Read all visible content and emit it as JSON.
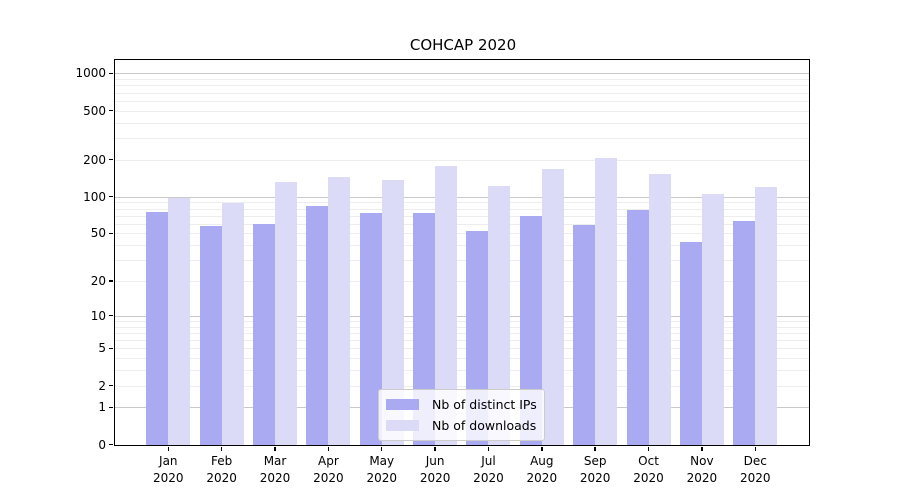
{
  "title": "COHCAP 2020",
  "colors": {
    "ips_bar": "#aaaaf2",
    "downloads_bar": "#dbdbf8",
    "grid_major": "#c9c9c9",
    "grid_minor": "#ededed",
    "spine": "#000000",
    "legend_border": "#cccccc"
  },
  "y_axis": {
    "ticks": [
      {
        "value": 0,
        "label": "0"
      },
      {
        "value": 1,
        "label": "1"
      },
      {
        "value": 2,
        "label": "2"
      },
      {
        "value": 5,
        "label": "5"
      },
      {
        "value": 10,
        "label": "10"
      },
      {
        "value": 20,
        "label": "20"
      },
      {
        "value": 50,
        "label": "50"
      },
      {
        "value": 100,
        "label": "100"
      },
      {
        "value": 200,
        "label": "200"
      },
      {
        "value": 500,
        "label": "500"
      },
      {
        "value": 1000,
        "label": "1000"
      }
    ]
  },
  "x_axis": {
    "months": [
      "Jan",
      "Feb",
      "Mar",
      "Apr",
      "May",
      "Jun",
      "Jul",
      "Aug",
      "Sep",
      "Oct",
      "Nov",
      "Dec"
    ],
    "year": "2020"
  },
  "legend": {
    "items": [
      {
        "label": "Nb of distinct IPs",
        "series": "ips_bar"
      },
      {
        "label": "Nb of downloads",
        "series": "downloads_bar"
      }
    ]
  },
  "chart_data": {
    "type": "bar",
    "title": "COHCAP 2020",
    "y_scale": "log1p",
    "categories": [
      "Jan 2020",
      "Feb 2020",
      "Mar 2020",
      "Apr 2020",
      "May 2020",
      "Jun 2020",
      "Jul 2020",
      "Aug 2020",
      "Sep 2020",
      "Oct 2020",
      "Nov 2020",
      "Dec 2020"
    ],
    "series": [
      {
        "name": "Nb of distinct IPs",
        "color": "#aaaaf2",
        "values": [
          73,
          56,
          59,
          83,
          72,
          72,
          51,
          68,
          58,
          77,
          42,
          62
        ]
      },
      {
        "name": "Nb of downloads",
        "color": "#dbdbf8",
        "values": [
          96,
          87,
          130,
          142,
          135,
          173,
          121,
          166,
          202,
          149,
          103,
          117
        ]
      }
    ],
    "yticks": [
      0,
      1,
      2,
      5,
      10,
      20,
      50,
      100,
      200,
      500,
      1000
    ],
    "ylim": [
      0,
      1300
    ],
    "xlabel": "",
    "ylabel": "",
    "grid": true,
    "legend_position": "lower center"
  }
}
